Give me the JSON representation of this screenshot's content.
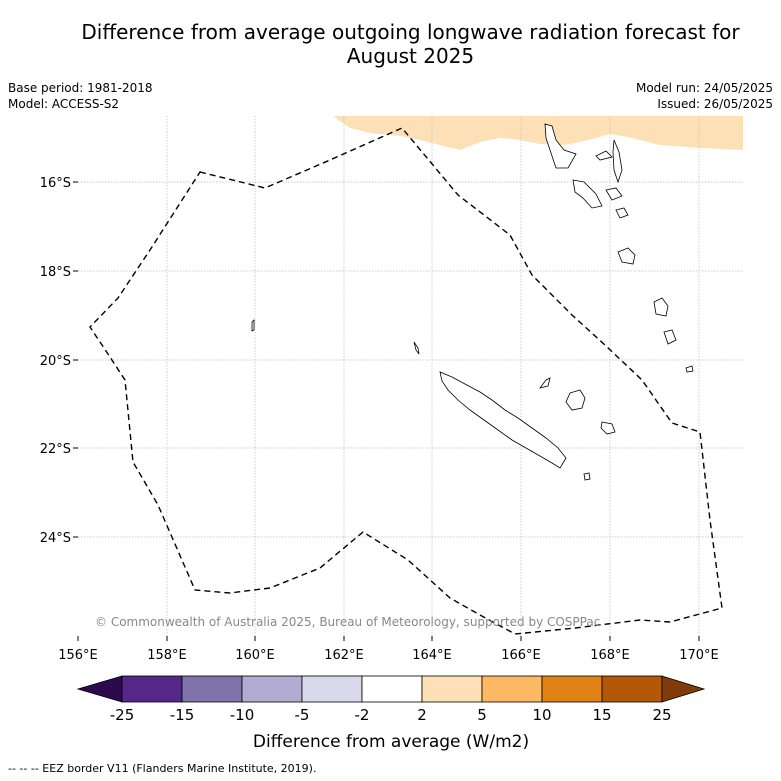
{
  "title_line1": "Difference from average outgoing longwave radiation forecast for",
  "title_line2": "August 2025",
  "base_period": "Base period: 1981-2018",
  "model": "Model: ACCESS-S2",
  "model_run": "Model run: 24/05/2025",
  "issued": "Issued: 26/05/2025",
  "copyright": "© Commonwealth of Australia 2025, Bureau of Meteorology, supported by COSPPac",
  "map": {
    "x_ticks": [
      "156°E",
      "158°E",
      "160°E",
      "162°E",
      "164°E",
      "166°E",
      "168°E",
      "170°E"
    ],
    "y_ticks": [
      "16°S",
      "18°S",
      "20°S",
      "22°S",
      "24°S"
    ],
    "grid": true
  },
  "colorbar": {
    "label": "Difference from average (W/m2)",
    "tick_labels": [
      "-25",
      "-15",
      "-10",
      "-5",
      "-2",
      "2",
      "5",
      "10",
      "15",
      "25"
    ],
    "colors": [
      "#2d0a4e",
      "#542788",
      "#8073ac",
      "#b2abd2",
      "#d8daeb",
      "#ffffff",
      "#fee0b6",
      "#fdb863",
      "#e08214",
      "#b35806",
      "#7f3b08"
    ]
  },
  "legend_note": "--  --  -- EEZ border V11 (Flanders Marine Institute, 2019)."
}
